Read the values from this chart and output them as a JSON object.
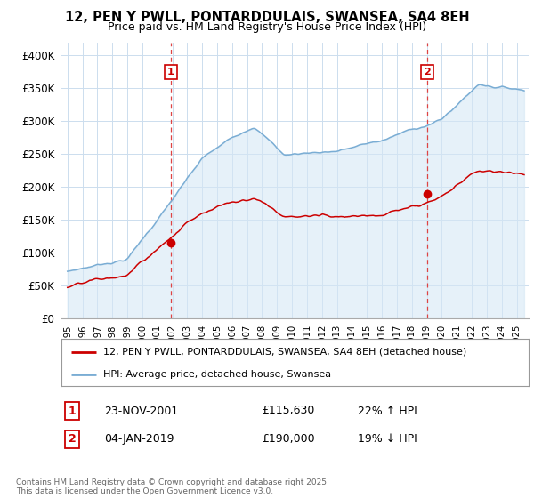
{
  "title": "12, PEN Y PWLL, PONTARDDULAIS, SWANSEA, SA4 8EH",
  "subtitle": "Price paid vs. HM Land Registry's House Price Index (HPI)",
  "ylim": [
    0,
    420000
  ],
  "yticks": [
    0,
    50000,
    100000,
    150000,
    200000,
    250000,
    300000,
    350000,
    400000
  ],
  "ytick_labels": [
    "£0",
    "£50K",
    "£100K",
    "£150K",
    "£200K",
    "£250K",
    "£300K",
    "£350K",
    "£400K"
  ],
  "xlim_start": 1994.6,
  "xlim_end": 2025.8,
  "house_color": "#cc0000",
  "hpi_color": "#7aadd4",
  "hpi_fill_color": "#d6e8f5",
  "transaction1_x": 2001.9,
  "transaction1_y": 115630,
  "transaction2_x": 2019.02,
  "transaction2_y": 190000,
  "legend_house": "12, PEN Y PWLL, PONTARDDULAIS, SWANSEA, SA4 8EH (detached house)",
  "legend_hpi": "HPI: Average price, detached house, Swansea",
  "t1_label": "1",
  "t1_date": "23-NOV-2001",
  "t1_price": "£115,630",
  "t1_hpi": "22% ↑ HPI",
  "t2_label": "2",
  "t2_date": "04-JAN-2019",
  "t2_price": "£190,000",
  "t2_hpi": "19% ↓ HPI",
  "footer": "Contains HM Land Registry data © Crown copyright and database right 2025.\nThis data is licensed under the Open Government Licence v3.0.",
  "bg_color": "#ffffff",
  "grid_color": "#ccddee"
}
